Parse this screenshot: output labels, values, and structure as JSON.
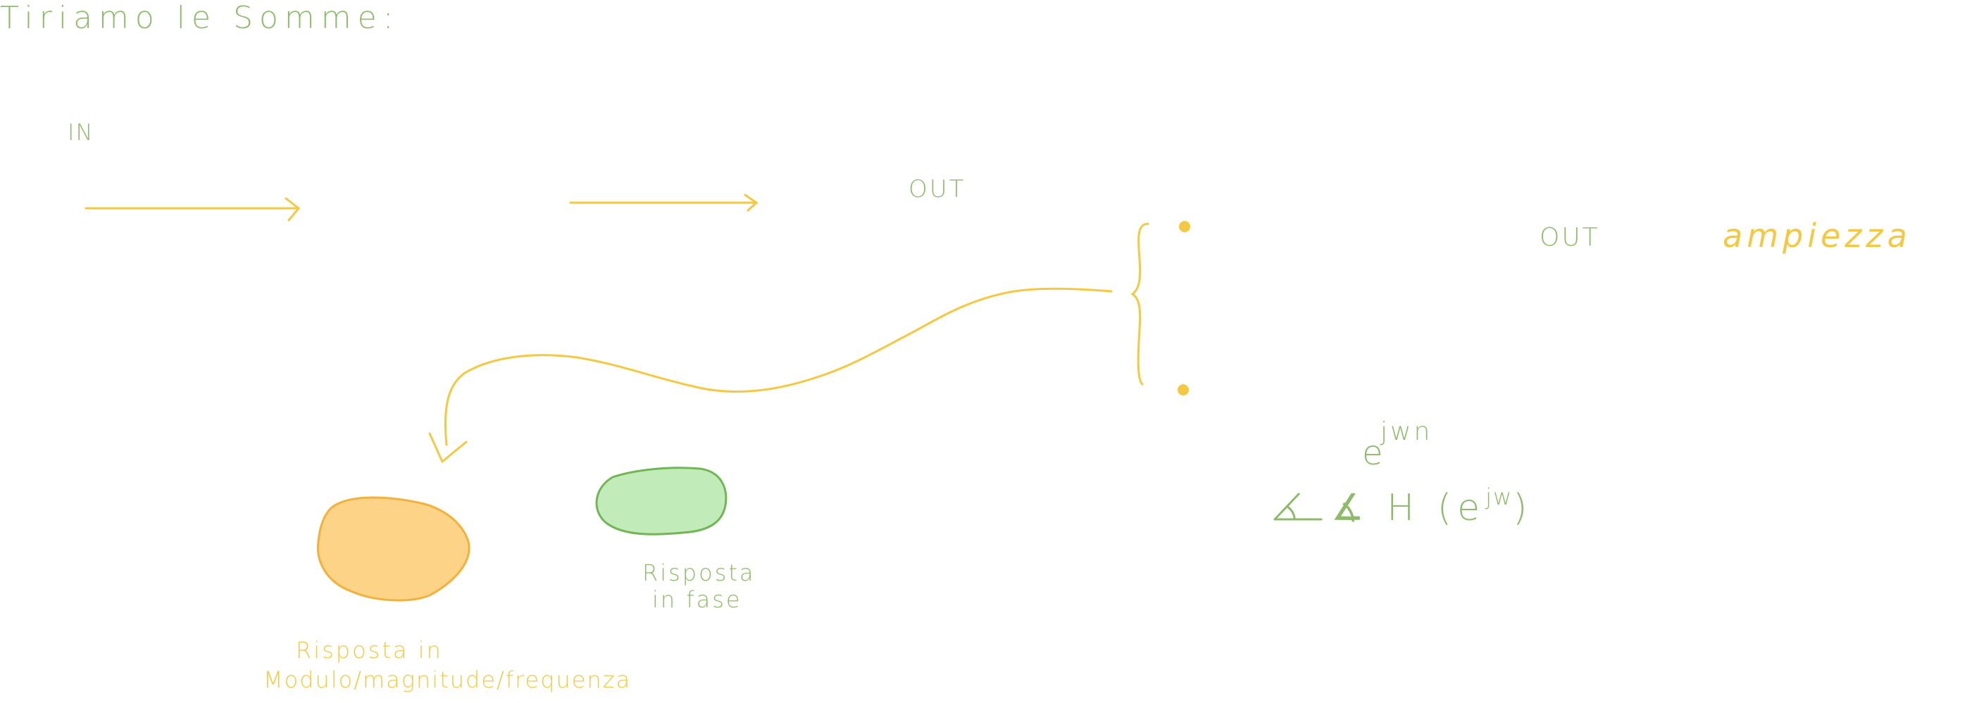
{
  "notes": {
    "title": "Tiriamo le Somme:",
    "in_label": "IN",
    "out_label_1": "OUT",
    "out_label_2": "OUT",
    "ampiezza": "ampiezza",
    "ejwn_base": "e",
    "ejwn_exp": "jwn",
    "phase_prefix": "∡ H (e",
    "phase_exp": "jw",
    "phase_suffix": ")",
    "risposta_fase_line1": "Risposta",
    "risposta_fase_line2": "in fase",
    "risposta_modulo_line1": "Risposta in",
    "risposta_modulo_line2": "Modulo/magnitude/frequenza"
  },
  "colors": {
    "green_ink": "#8dbb6b",
    "yellow_ink": "#f5c842",
    "orange_fill": "#fdd387",
    "orange_stroke": "#f3b13b",
    "green_fill": "#c1ebb8",
    "green_stroke": "#72b554"
  }
}
